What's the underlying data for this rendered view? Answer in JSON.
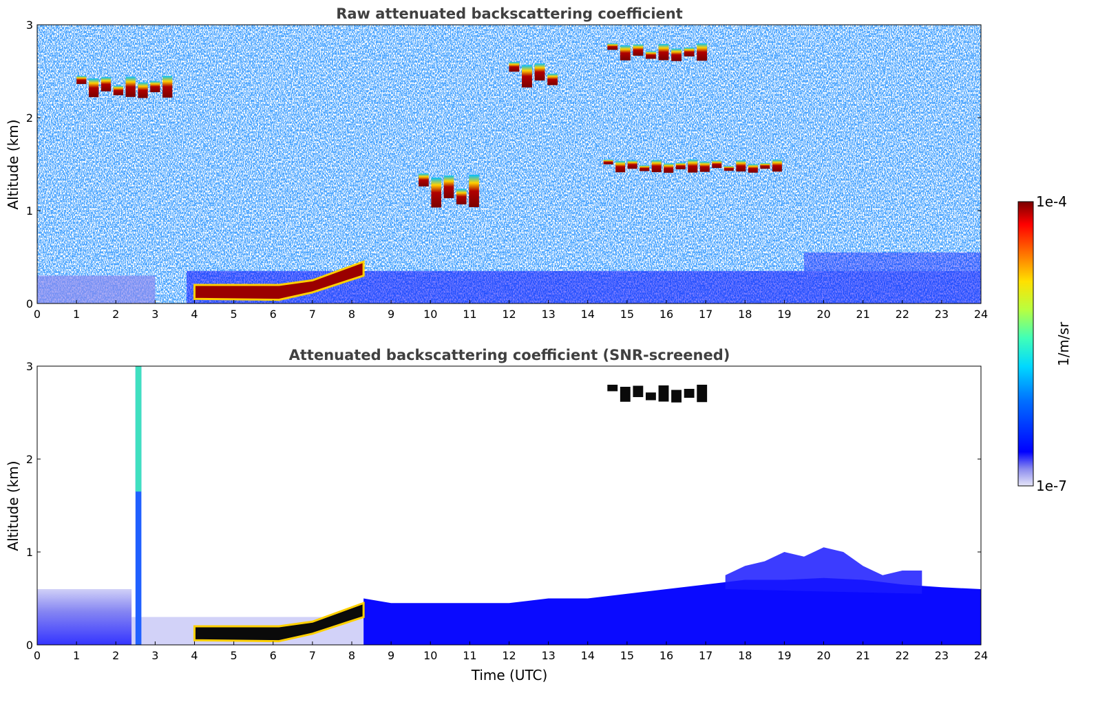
{
  "chart_data": [
    {
      "type": "heatmap",
      "title": "Raw attenuated backscattering coefficient",
      "xlabel": "",
      "ylabel": "Altitude (km)",
      "xlim": [
        0,
        24
      ],
      "ylim": [
        0,
        3
      ],
      "x_ticks": [
        "0",
        "1",
        "2",
        "3",
        "4",
        "5",
        "6",
        "7",
        "8",
        "9",
        "10",
        "11",
        "12",
        "13",
        "14",
        "15",
        "16",
        "17",
        "18",
        "19",
        "20",
        "21",
        "22",
        "23",
        "24"
      ],
      "y_ticks": [
        "0",
        "1",
        "2",
        "3"
      ],
      "colormap": "jet",
      "features": [
        {
          "kind": "boundary_layer_aerosol",
          "x": [
            0,
            24
          ],
          "y": [
            0,
            0.35
          ]
        },
        {
          "kind": "low_cloud",
          "x": [
            4.0,
            8.3
          ],
          "y_start": [
            0.05,
            0.2
          ],
          "y_end": [
            0.3,
            0.45
          ]
        },
        {
          "kind": "cloud_patches",
          "x": [
            9.7,
            11.3
          ],
          "y": [
            1.0,
            1.4
          ]
        },
        {
          "kind": "cloud_patches",
          "x": [
            12.0,
            13.3
          ],
          "y": [
            2.3,
            2.6
          ]
        },
        {
          "kind": "cloud_layer",
          "x": [
            14.5,
            17.1
          ],
          "y": [
            2.6,
            2.8
          ]
        },
        {
          "kind": "isolated_clouds",
          "x": [
            1.0,
            3.5
          ],
          "y": [
            2.2,
            2.45
          ]
        },
        {
          "kind": "isolated_clouds",
          "x": [
            14.4,
            19.0
          ],
          "y": [
            1.4,
            1.55
          ]
        }
      ]
    },
    {
      "type": "heatmap",
      "title": "Attenuated backscattering coefficient (SNR-screened)",
      "xlabel": "Time (UTC)",
      "ylabel": "Altitude (km)",
      "xlim": [
        0,
        24
      ],
      "ylim": [
        0,
        3
      ],
      "x_ticks": [
        "0",
        "1",
        "2",
        "3",
        "4",
        "5",
        "6",
        "7",
        "8",
        "9",
        "10",
        "11",
        "12",
        "13",
        "14",
        "15",
        "16",
        "17",
        "18",
        "19",
        "20",
        "21",
        "22",
        "23",
        "24"
      ],
      "y_ticks": [
        "0",
        "1",
        "2",
        "3"
      ],
      "colormap": "jet",
      "features": [
        {
          "kind": "boundary_layer_aerosol",
          "x": [
            0,
            24
          ],
          "y": [
            0,
            0.6
          ]
        },
        {
          "kind": "low_cloud",
          "x": [
            4.0,
            8.3
          ],
          "y_start": [
            0.05,
            0.2
          ],
          "y_end": [
            0.3,
            0.45
          ]
        },
        {
          "kind": "aerosol_plume",
          "x": [
            2.5,
            2.65
          ],
          "y": [
            0,
            3.0
          ]
        },
        {
          "kind": "cloud_layer",
          "x": [
            14.5,
            17.1
          ],
          "y": [
            2.6,
            2.8
          ]
        },
        {
          "kind": "elevated_aerosol",
          "x": [
            17.5,
            22.5
          ],
          "y": [
            0.6,
            1.1
          ]
        }
      ]
    }
  ],
  "colorbar": {
    "label": "1/m/sr",
    "max_label": "1e-4",
    "min_label": "1e-7",
    "scale": "log"
  }
}
